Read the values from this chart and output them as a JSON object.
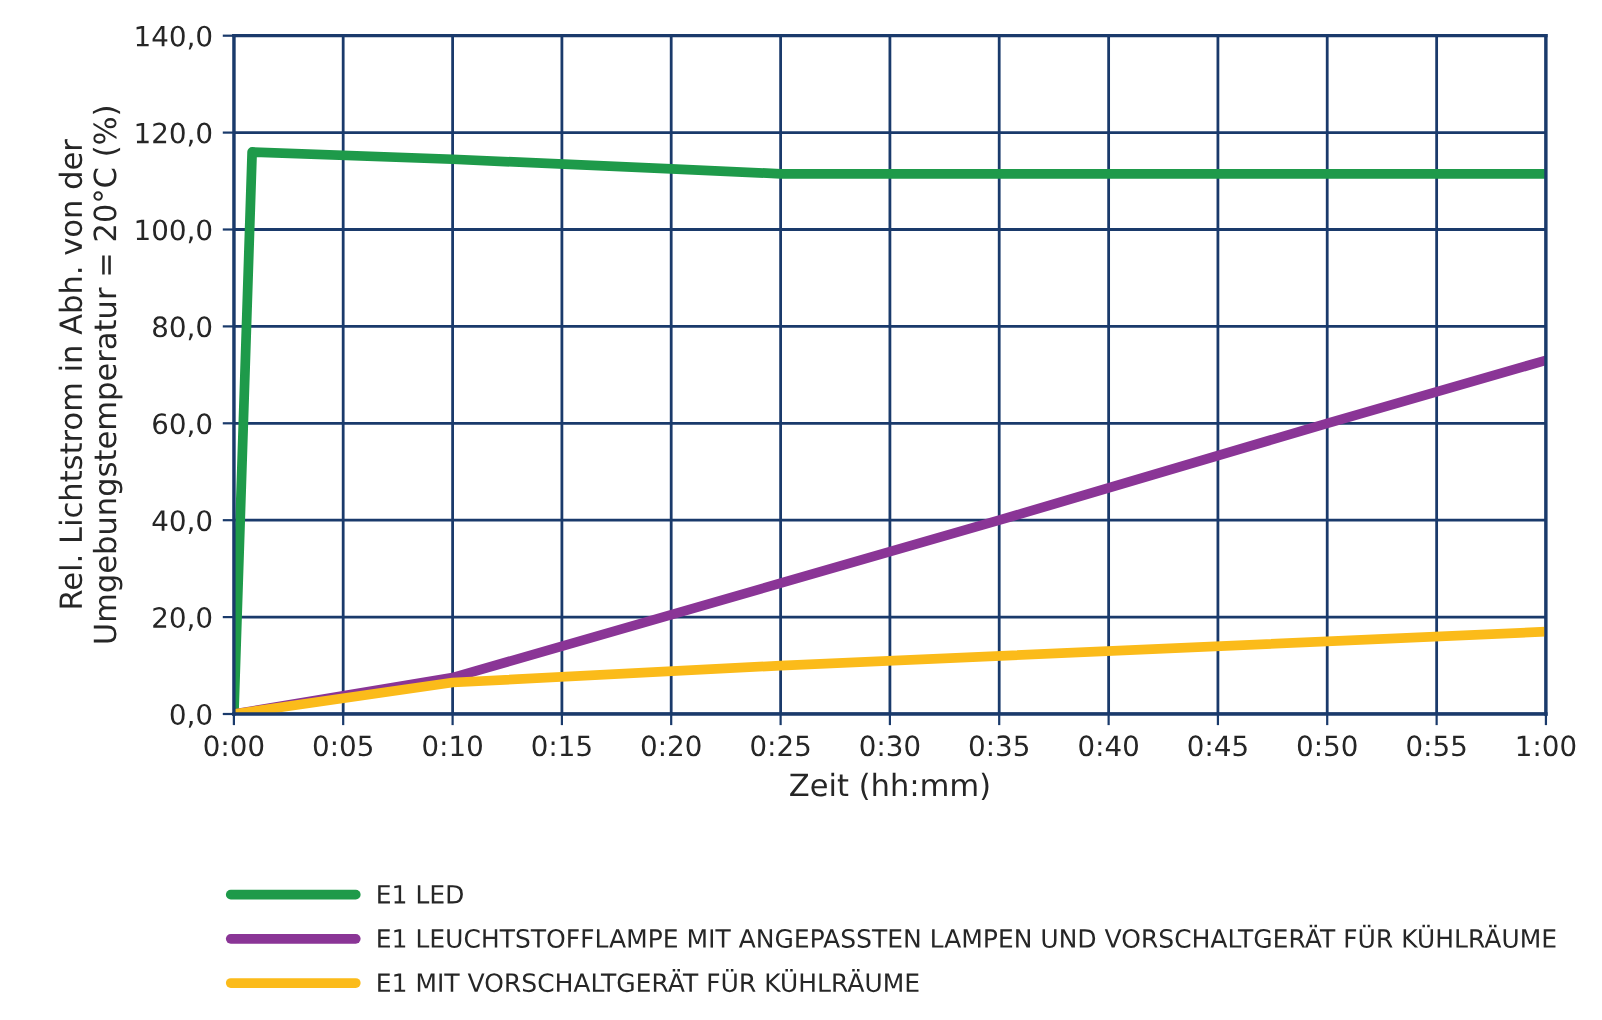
{
  "chart_data": {
    "type": "line",
    "xlabel": "Zeit (hh:mm)",
    "ylabel": "Rel. Lichtstrom in Abh. von der\nUmgebungstemperatur = 20°C (%)",
    "xlim": [
      0,
      1
    ],
    "ylim": [
      0,
      140
    ],
    "xticks": [
      {
        "value": 0,
        "label": "0:00"
      },
      {
        "value": 0.0833,
        "label": "0:05"
      },
      {
        "value": 0.1667,
        "label": "0:10"
      },
      {
        "value": 0.25,
        "label": "0:15"
      },
      {
        "value": 0.3333,
        "label": "0:20"
      },
      {
        "value": 0.4167,
        "label": "0:25"
      },
      {
        "value": 0.5,
        "label": "0:30"
      },
      {
        "value": 0.5833,
        "label": "0:35"
      },
      {
        "value": 0.6667,
        "label": "0:40"
      },
      {
        "value": 0.75,
        "label": "0:45"
      },
      {
        "value": 0.8333,
        "label": "0:50"
      },
      {
        "value": 0.9167,
        "label": "0:55"
      },
      {
        "value": 1,
        "label": "1:00"
      }
    ],
    "yticks": [
      {
        "value": 0,
        "label": "0,0"
      },
      {
        "value": 20,
        "label": "20,0"
      },
      {
        "value": 40,
        "label": "40,0"
      },
      {
        "value": 60,
        "label": "60,0"
      },
      {
        "value": 80,
        "label": "80,0"
      },
      {
        "value": 100,
        "label": "100,0"
      },
      {
        "value": 120,
        "label": "120,0"
      },
      {
        "value": 140,
        "label": "140,0"
      }
    ],
    "grid": true,
    "legend": "bottom",
    "marker": "none",
    "line_style": "solid",
    "series": [
      {
        "name": "E1 LED",
        "color": "#1e9a4a",
        "x": [
          0,
          0.0139,
          0.1667,
          0.3333,
          0.4167,
          1
        ],
        "values": [
          0,
          116,
          114.5,
          112.5,
          111.5,
          111.5
        ]
      },
      {
        "name": "E1 LEUCHTSTOFFLAMPE MIT ANGEPASSTEN LAMPEN UND VORSCHALTGERÄT FÜR KÜHLRÄUME",
        "color": "#8a3596",
        "x": [
          0,
          0.1667,
          0.4167,
          0.5833,
          0.8333,
          1
        ],
        "values": [
          0,
          7.5,
          27,
          40,
          60,
          73
        ]
      },
      {
        "name": "E1 MIT VORSCHALTGERÄT FÜR KÜHLRÄUME",
        "color": "#fbbb1a",
        "x": [
          0,
          0.1667,
          0.4167,
          1
        ],
        "values": [
          0,
          6.5,
          10,
          17
        ]
      }
    ]
  }
}
